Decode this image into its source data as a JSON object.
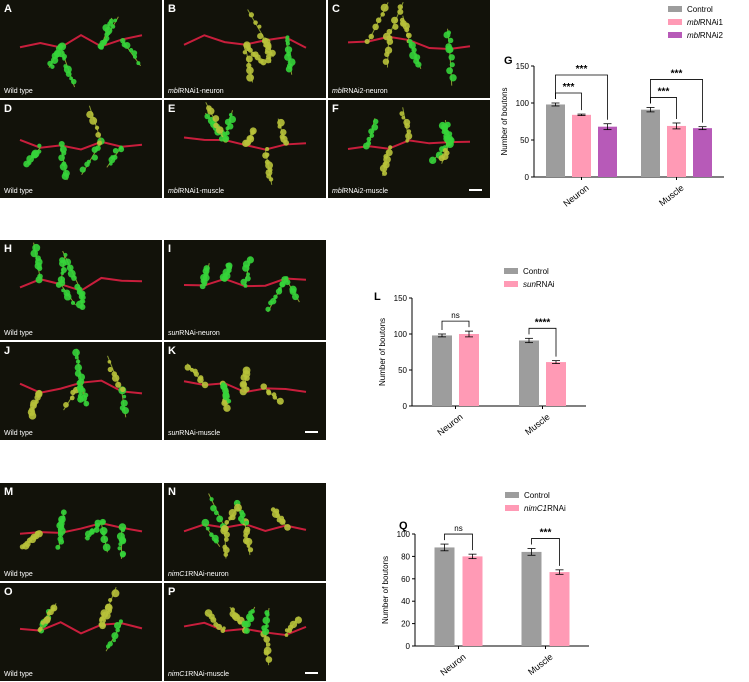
{
  "rows": [
    {
      "panels": [
        {
          "label": "A",
          "caption_italic": "",
          "caption_rest": "Wild type"
        },
        {
          "label": "B",
          "caption_italic": "mbl",
          "caption_rest": "RNAi1-neuron"
        },
        {
          "label": "C",
          "caption_italic": "mbl",
          "caption_rest": "RNAi2-neuron"
        },
        {
          "label": "D",
          "caption_italic": "",
          "caption_rest": "Wild type"
        },
        {
          "label": "E",
          "caption_italic": "mbl",
          "caption_rest": "RNAi1-muscle"
        },
        {
          "label": "F",
          "caption_italic": "mbl",
          "caption_rest": "RNAi2-muscle"
        }
      ]
    },
    {
      "panels": [
        {
          "label": "H",
          "caption_italic": "",
          "caption_rest": "Wild type"
        },
        {
          "label": "I",
          "caption_italic": "sun",
          "caption_rest": "RNAi-neuron"
        },
        {
          "label": "J",
          "caption_italic": "",
          "caption_rest": "Wild type"
        },
        {
          "label": "K",
          "caption_italic": "sun",
          "caption_rest": "RNAi-muscle"
        }
      ]
    },
    {
      "panels": [
        {
          "label": "M",
          "caption_italic": "",
          "caption_rest": "Wild type"
        },
        {
          "label": "N",
          "caption_italic": "nimC1",
          "caption_rest": "RNAi-neuron"
        },
        {
          "label": "O",
          "caption_italic": "",
          "caption_rest": "Wild type"
        },
        {
          "label": "P",
          "caption_italic": "nimC1",
          "caption_rest": "RNAi-muscle"
        }
      ]
    }
  ],
  "colors": {
    "control": "#9d9d9d",
    "rnai1": "#ff9ab5",
    "rnai2": "#b75ab8",
    "axon": "#c81e3c",
    "bouton": "#35d43a",
    "bouton_yellow": "#b8c23a"
  },
  "chart_data": [
    {
      "type": "bar",
      "panel_label": "G",
      "ylabel": "Number of boutons",
      "categories": [
        "Neuron",
        "Muscle"
      ],
      "ylim": [
        0,
        150
      ],
      "yticks": [
        0,
        50,
        100,
        150
      ],
      "series": [
        {
          "name": "Control",
          "name_italic": "",
          "name_rest": "Control",
          "color": "#9d9d9d",
          "values": [
            98,
            91
          ],
          "errors": [
            2,
            3
          ]
        },
        {
          "name": "mblRNAi1",
          "name_italic": "mbl",
          "name_rest": "RNAi1",
          "color": "#ff9ab5",
          "values": [
            84,
            69
          ],
          "errors": [
            1,
            4
          ]
        },
        {
          "name": "mblRNAi2",
          "name_italic": "mbl",
          "name_rest": "RNAi2",
          "color": "#b75ab8",
          "values": [
            68,
            66
          ],
          "errors": [
            4,
            2
          ]
        }
      ],
      "annotations": [
        {
          "group": 0,
          "from": 0,
          "to": 1,
          "text": "***"
        },
        {
          "group": 0,
          "from": 0,
          "to": 2,
          "text": "***"
        },
        {
          "group": 1,
          "from": 0,
          "to": 1,
          "text": "***"
        },
        {
          "group": 1,
          "from": 0,
          "to": 2,
          "text": "***"
        }
      ],
      "legend_position": "top-right"
    },
    {
      "type": "bar",
      "panel_label": "L",
      "ylabel": "Number of boutons",
      "categories": [
        "Neuron",
        "Muscle"
      ],
      "ylim": [
        0,
        150
      ],
      "yticks": [
        0,
        50,
        100,
        150
      ],
      "series": [
        {
          "name": "Control",
          "name_italic": "",
          "name_rest": "Control",
          "color": "#9d9d9d",
          "values": [
            98,
            91
          ],
          "errors": [
            2,
            3
          ]
        },
        {
          "name": "sunRNAi",
          "name_italic": "sun",
          "name_rest": "RNAi",
          "color": "#ff9ab5",
          "values": [
            100,
            61
          ],
          "errors": [
            4,
            2
          ]
        }
      ],
      "annotations": [
        {
          "group": 0,
          "from": 0,
          "to": 1,
          "text": "ns"
        },
        {
          "group": 1,
          "from": 0,
          "to": 1,
          "text": "****"
        }
      ],
      "legend_position": "top-right"
    },
    {
      "type": "bar",
      "panel_label": "Q",
      "ylabel": "Number of boutons",
      "categories": [
        "Neuron",
        "Muscle"
      ],
      "ylim": [
        0,
        100
      ],
      "yticks": [
        0,
        20,
        40,
        60,
        80,
        100
      ],
      "series": [
        {
          "name": "Control",
          "name_italic": "",
          "name_rest": "Control",
          "color": "#9d9d9d",
          "values": [
            88,
            84
          ],
          "errors": [
            3,
            3
          ]
        },
        {
          "name": "nimC1RNAi",
          "name_italic": "nimC1",
          "name_rest": "RNAi",
          "color": "#ff9ab5",
          "values": [
            80,
            66
          ],
          "errors": [
            2,
            2
          ]
        }
      ],
      "annotations": [
        {
          "group": 0,
          "from": 0,
          "to": 1,
          "text": "ns"
        },
        {
          "group": 1,
          "from": 0,
          "to": 1,
          "text": "***"
        }
      ],
      "legend_position": "top-right"
    }
  ]
}
